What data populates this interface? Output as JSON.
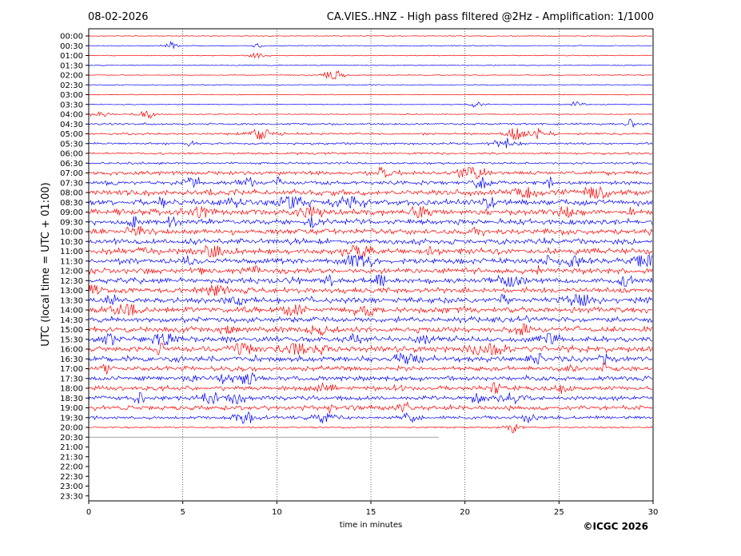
{
  "chart_data": {
    "type": "line",
    "date": "08-02-2026",
    "title": "CA.VIES..HNZ - High pass filtered @2Hz - Amplification: 1/1000",
    "xlabel": "time in minutes",
    "ylabel": "UTC (local time = UTC + 01:00)",
    "xlim": [
      0,
      30
    ],
    "xticks": [
      "0",
      "5",
      "10",
      "15",
      "20",
      "25",
      "30"
    ],
    "rows": [
      "00:00",
      "00:30",
      "01:00",
      "01:30",
      "02:00",
      "02:30",
      "03:00",
      "03:30",
      "04:00",
      "04:30",
      "05:00",
      "05:30",
      "06:00",
      "06:30",
      "07:00",
      "07:30",
      "08:00",
      "08:30",
      "09:00",
      "09:30",
      "10:00",
      "10:30",
      "11:00",
      "11:30",
      "12:00",
      "12:30",
      "13:00",
      "13:30",
      "14:00",
      "14:30",
      "15:00",
      "15:30",
      "16:00",
      "16:30",
      "17:00",
      "17:30",
      "18:00",
      "18:30",
      "19:00",
      "19:30",
      "20:00",
      "20:30",
      "21:00",
      "21:30",
      "22:00",
      "22:30",
      "23:00",
      "23:30"
    ],
    "series_colors": [
      "#ff0000",
      "#0000ff"
    ],
    "last_trace_end_minutes": 18.6,
    "credit": "©ICGC 2026"
  }
}
